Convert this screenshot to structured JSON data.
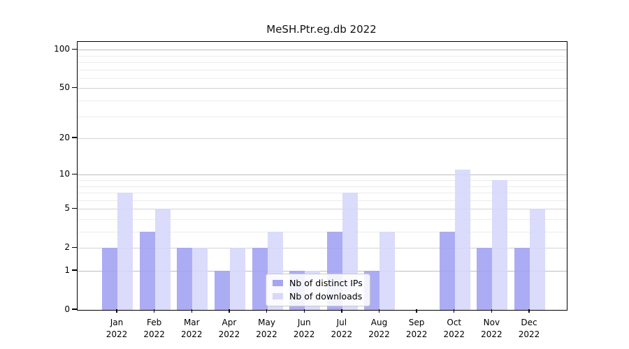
{
  "chart_data": {
    "type": "bar",
    "title": "MeSH.Ptr.eg.db 2022",
    "year_label": "2022",
    "categories": [
      "Jan",
      "Feb",
      "Mar",
      "Apr",
      "May",
      "Jun",
      "Jul",
      "Aug",
      "Sep",
      "Oct",
      "Nov",
      "Dec"
    ],
    "series": [
      {
        "name": "Nb of distinct IPs",
        "color": "#a0a0f2",
        "values": [
          2,
          3,
          2,
          1,
          2,
          1,
          3,
          1,
          0,
          3,
          2,
          2
        ]
      },
      {
        "name": "Nb of downloads",
        "color": "#d6d6fa",
        "values": [
          7,
          5,
          2,
          2,
          3,
          1,
          7,
          3,
          0,
          11,
          9,
          5
        ]
      }
    ],
    "y_axis": {
      "scale": "log10(1+x)",
      "tick_labels": [
        "100",
        "50",
        "20",
        "10",
        "5",
        "2",
        "1",
        "0"
      ],
      "tick_values": [
        100,
        50,
        20,
        10,
        5,
        2,
        1,
        0
      ],
      "decade_gridlines": [
        1,
        10,
        100
      ],
      "sub_gridlines": [
        2,
        5,
        20,
        50
      ],
      "minor_gridlines": [
        3,
        4,
        6,
        7,
        8,
        9,
        30,
        40,
        60,
        70,
        80,
        90
      ],
      "ymax_log_units": 2.065
    },
    "legend": {
      "position": "inside-bottom-center"
    },
    "colors": {
      "grid_decade": "#bdbdbd",
      "grid_sub": "#d2d2d2",
      "grid_minor": "#ececec",
      "axis": "#000000",
      "background": "#ffffff"
    }
  }
}
